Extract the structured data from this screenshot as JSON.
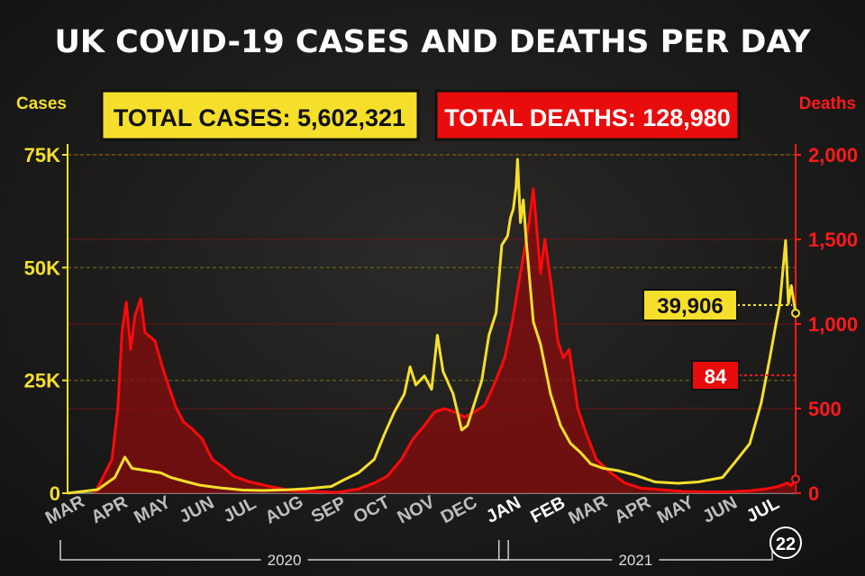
{
  "title": "UK COVID-19 CASES AND DEATHS PER DAY",
  "badges": {
    "total_cases": "TOTAL CASES: 5,602,321",
    "total_deaths": "TOTAL DEATHS: 128,980"
  },
  "callouts": {
    "latest_cases": "39,906",
    "latest_deaths": "84",
    "date_day": "22"
  },
  "colors": {
    "cases": "#f5df2a",
    "deaths": "#ff0a0a",
    "deaths_fill": "#8a0c0c",
    "background": "#151515",
    "grid_cases": "#6b6a1c",
    "grid_deaths": "#6b1414"
  },
  "chart_data": {
    "type": "line",
    "y_axis_left": {
      "title": "Cases",
      "range": [
        0,
        75000
      ],
      "ticks": [
        0,
        25000,
        50000,
        75000
      ],
      "tick_labels": [
        "0",
        "25K",
        "50K",
        "75K"
      ]
    },
    "y_axis_right": {
      "title": "Deaths",
      "range": [
        0,
        2000
      ],
      "ticks": [
        0,
        500,
        1000,
        1500,
        2000
      ],
      "tick_labels": [
        "0",
        "500",
        "1,000",
        "1,500",
        "2,000"
      ]
    },
    "x_axis": {
      "range": [
        "2020-03-01",
        "2021-07-22"
      ],
      "months": [
        {
          "label": "MAR",
          "date": "2020-03-01"
        },
        {
          "label": "APR",
          "date": "2020-04-01"
        },
        {
          "label": "MAY",
          "date": "2020-05-01"
        },
        {
          "label": "JUN",
          "date": "2020-06-01"
        },
        {
          "label": "JUL",
          "date": "2020-07-01"
        },
        {
          "label": "AUG",
          "date": "2020-08-01"
        },
        {
          "label": "SEP",
          "date": "2020-09-01"
        },
        {
          "label": "OCT",
          "date": "2020-10-01"
        },
        {
          "label": "NOV",
          "date": "2020-11-01"
        },
        {
          "label": "DEC",
          "date": "2020-12-01"
        },
        {
          "label": "JAN",
          "date": "2021-01-01"
        },
        {
          "label": "FEB",
          "date": "2021-02-01"
        },
        {
          "label": "MAR",
          "date": "2021-03-01"
        },
        {
          "label": "APR",
          "date": "2021-04-01"
        },
        {
          "label": "MAY",
          "date": "2021-05-01"
        },
        {
          "label": "JUN",
          "date": "2021-06-01"
        },
        {
          "label": "JUL",
          "date": "2021-07-01"
        }
      ],
      "years": [
        {
          "label": "2020",
          "start": "2020-03-01",
          "end": "2020-12-31"
        },
        {
          "label": "2021",
          "start": "2021-01-01",
          "end": "2021-07-22"
        }
      ]
    },
    "series": [
      {
        "name": "Cases",
        "axis": "left",
        "color": "#f5df2a",
        "points": [
          [
            "2020-03-01",
            0
          ],
          [
            "2020-03-22",
            800
          ],
          [
            "2020-04-03",
            3500
          ],
          [
            "2020-04-10",
            8000
          ],
          [
            "2020-04-15",
            5500
          ],
          [
            "2020-04-25",
            5000
          ],
          [
            "2020-05-05",
            4500
          ],
          [
            "2020-05-12",
            3500
          ],
          [
            "2020-05-20",
            2800
          ],
          [
            "2020-06-01",
            1800
          ],
          [
            "2020-06-15",
            1200
          ],
          [
            "2020-07-01",
            700
          ],
          [
            "2020-07-15",
            600
          ],
          [
            "2020-08-01",
            750
          ],
          [
            "2020-08-15",
            1000
          ],
          [
            "2020-09-01",
            1500
          ],
          [
            "2020-09-10",
            3000
          ],
          [
            "2020-09-20",
            4500
          ],
          [
            "2020-10-01",
            7500
          ],
          [
            "2020-10-08",
            13000
          ],
          [
            "2020-10-15",
            18000
          ],
          [
            "2020-10-22",
            22000
          ],
          [
            "2020-10-26",
            28000
          ],
          [
            "2020-10-30",
            24000
          ],
          [
            "2020-11-05",
            26000
          ],
          [
            "2020-11-10",
            23000
          ],
          [
            "2020-11-14",
            35000
          ],
          [
            "2020-11-18",
            27000
          ],
          [
            "2020-11-25",
            22000
          ],
          [
            "2020-12-01",
            14000
          ],
          [
            "2020-12-05",
            15000
          ],
          [
            "2020-12-10",
            20000
          ],
          [
            "2020-12-15",
            25000
          ],
          [
            "2020-12-20",
            35000
          ],
          [
            "2020-12-25",
            40000
          ],
          [
            "2020-12-29",
            55000
          ],
          [
            "2021-01-02",
            57000
          ],
          [
            "2021-01-04",
            61000
          ],
          [
            "2021-01-06",
            63000
          ],
          [
            "2021-01-08",
            68000
          ],
          [
            "2021-01-09",
            74000
          ],
          [
            "2021-01-11",
            60000
          ],
          [
            "2021-01-13",
            65000
          ],
          [
            "2021-01-15",
            56000
          ],
          [
            "2021-01-20",
            38000
          ],
          [
            "2021-01-25",
            33000
          ],
          [
            "2021-02-01",
            22000
          ],
          [
            "2021-02-08",
            15000
          ],
          [
            "2021-02-15",
            11000
          ],
          [
            "2021-02-22",
            9000
          ],
          [
            "2021-03-01",
            6500
          ],
          [
            "2021-03-10",
            5500
          ],
          [
            "2021-03-20",
            5000
          ],
          [
            "2021-04-01",
            4000
          ],
          [
            "2021-04-15",
            2500
          ],
          [
            "2021-05-01",
            2200
          ],
          [
            "2021-05-15",
            2500
          ],
          [
            "2021-06-01",
            3500
          ],
          [
            "2021-06-10",
            7000
          ],
          [
            "2021-06-20",
            11000
          ],
          [
            "2021-06-28",
            20000
          ],
          [
            "2021-07-04",
            30000
          ],
          [
            "2021-07-08",
            37000
          ],
          [
            "2021-07-11",
            42000
          ],
          [
            "2021-07-15",
            56000
          ],
          [
            "2021-07-17",
            42000
          ],
          [
            "2021-07-19",
            46000
          ],
          [
            "2021-07-22",
            39906
          ]
        ]
      },
      {
        "name": "Deaths",
        "axis": "right",
        "color": "#ff0a0a",
        "points": [
          [
            "2020-03-20",
            0
          ],
          [
            "2020-04-01",
            200
          ],
          [
            "2020-04-05",
            500
          ],
          [
            "2020-04-08",
            950
          ],
          [
            "2020-04-11",
            1130
          ],
          [
            "2020-04-14",
            850
          ],
          [
            "2020-04-17",
            1050
          ],
          [
            "2020-04-21",
            1150
          ],
          [
            "2020-04-24",
            950
          ],
          [
            "2020-05-01",
            900
          ],
          [
            "2020-05-06",
            750
          ],
          [
            "2020-05-11",
            620
          ],
          [
            "2020-05-16",
            500
          ],
          [
            "2020-05-21",
            420
          ],
          [
            "2020-05-27",
            380
          ],
          [
            "2020-06-03",
            320
          ],
          [
            "2020-06-10",
            200
          ],
          [
            "2020-06-18",
            150
          ],
          [
            "2020-06-25",
            100
          ],
          [
            "2020-07-05",
            70
          ],
          [
            "2020-07-20",
            40
          ],
          [
            "2020-08-05",
            15
          ],
          [
            "2020-08-20",
            10
          ],
          [
            "2020-09-05",
            5
          ],
          [
            "2020-09-20",
            25
          ],
          [
            "2020-10-01",
            60
          ],
          [
            "2020-10-10",
            100
          ],
          [
            "2020-10-20",
            200
          ],
          [
            "2020-10-28",
            320
          ],
          [
            "2020-11-05",
            400
          ],
          [
            "2020-11-12",
            480
          ],
          [
            "2020-11-19",
            500
          ],
          [
            "2020-11-26",
            480
          ],
          [
            "2020-12-03",
            450
          ],
          [
            "2020-12-10",
            480
          ],
          [
            "2020-12-17",
            520
          ],
          [
            "2020-12-24",
            650
          ],
          [
            "2020-12-31",
            800
          ],
          [
            "2021-01-05",
            1000
          ],
          [
            "2021-01-09",
            1200
          ],
          [
            "2021-01-13",
            1400
          ],
          [
            "2021-01-17",
            1600
          ],
          [
            "2021-01-20",
            1800
          ],
          [
            "2021-01-25",
            1300
          ],
          [
            "2021-01-28",
            1500
          ],
          [
            "2021-02-02",
            1200
          ],
          [
            "2021-02-06",
            900
          ],
          [
            "2021-02-10",
            800
          ],
          [
            "2021-02-14",
            850
          ],
          [
            "2021-02-20",
            500
          ],
          [
            "2021-02-26",
            350
          ],
          [
            "2021-03-05",
            200
          ],
          [
            "2021-03-15",
            120
          ],
          [
            "2021-03-25",
            60
          ],
          [
            "2021-04-05",
            30
          ],
          [
            "2021-04-20",
            20
          ],
          [
            "2021-05-05",
            10
          ],
          [
            "2021-05-20",
            8
          ],
          [
            "2021-06-05",
            8
          ],
          [
            "2021-06-20",
            15
          ],
          [
            "2021-07-01",
            25
          ],
          [
            "2021-07-10",
            40
          ],
          [
            "2021-07-16",
            60
          ],
          [
            "2021-07-19",
            45
          ],
          [
            "2021-07-22",
            84
          ]
        ]
      }
    ]
  }
}
